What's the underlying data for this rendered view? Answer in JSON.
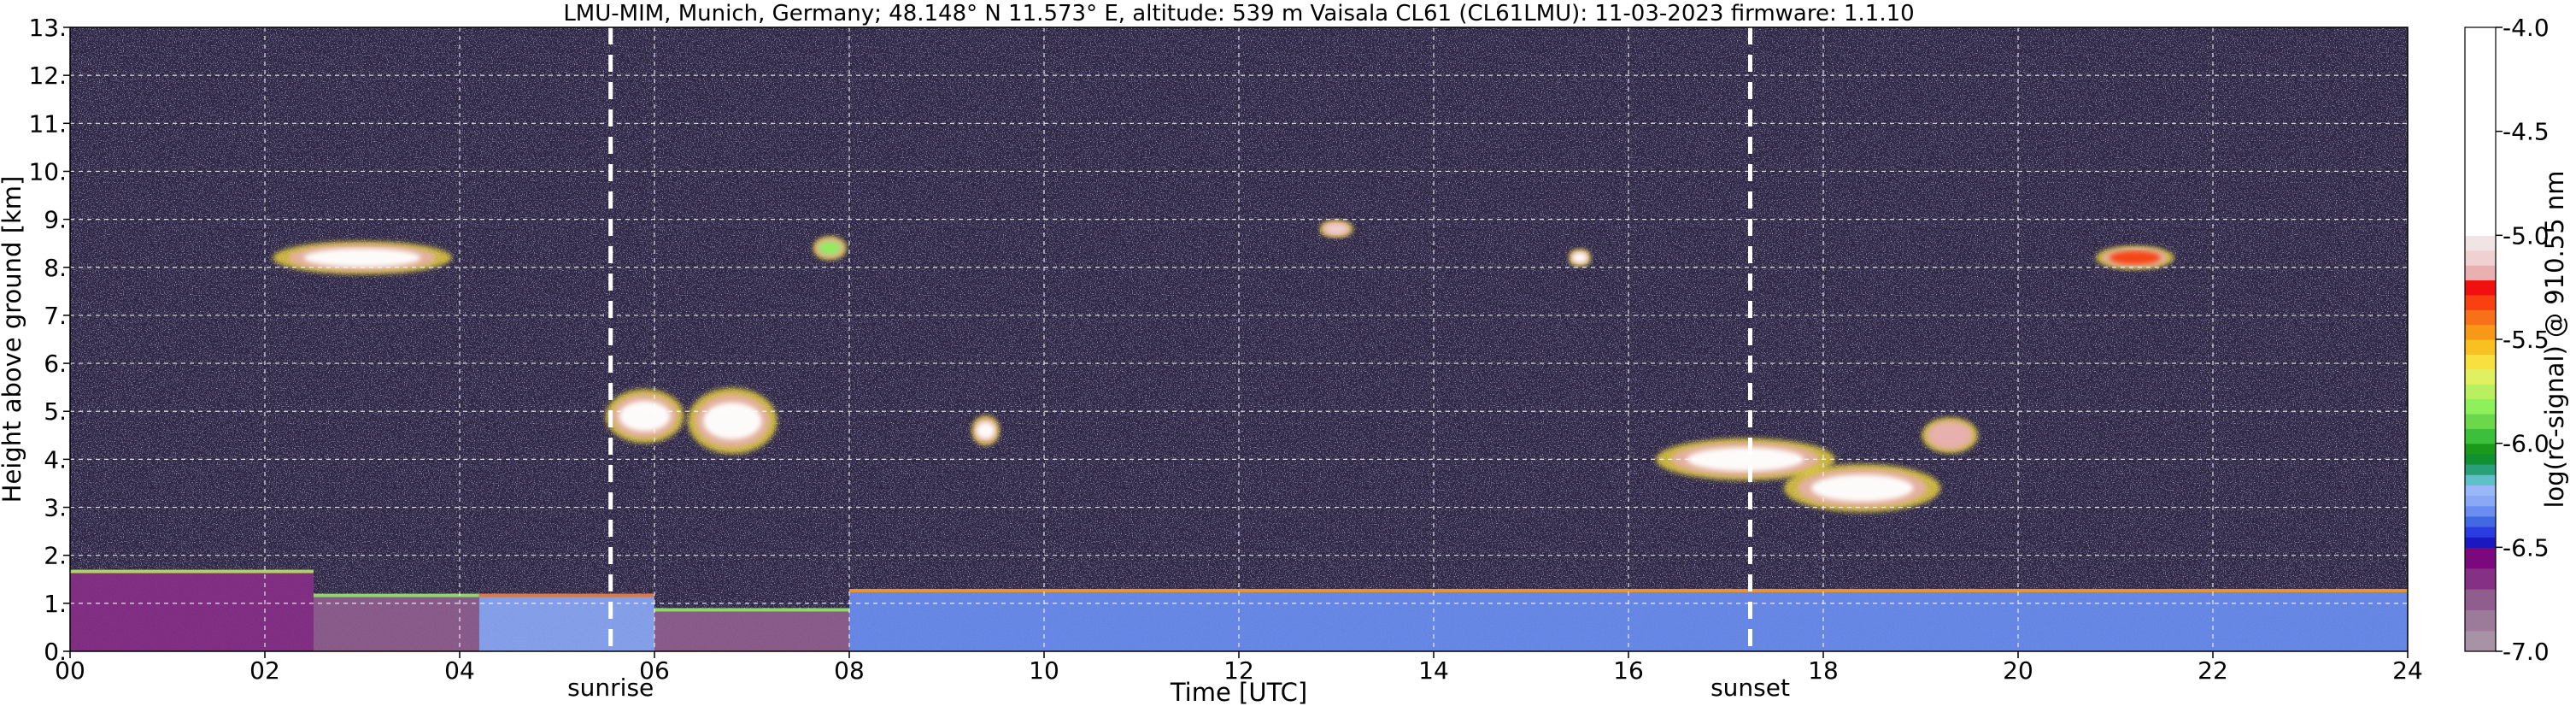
{
  "chart_data": {
    "type": "heatmap",
    "title": "LMU-MIM, Munich, Germany; 48.148° N 11.573° E, altitude: 539 m    Vaisala CL61 (CL61LMU): 11-03-2023    firmware: 1.1.10",
    "xlabel": "Time [UTC]",
    "ylabel": "Height above ground [km]",
    "xlim": [
      0,
      24
    ],
    "ylim": [
      0,
      13
    ],
    "x_ticks": [
      "00",
      "02",
      "04",
      "06",
      "08",
      "10",
      "12",
      "14",
      "16",
      "18",
      "20",
      "22",
      "24"
    ],
    "x_tick_values": [
      0,
      2,
      4,
      6,
      8,
      10,
      12,
      14,
      16,
      18,
      20,
      22,
      24
    ],
    "y_ticks": [
      "0.",
      "1.",
      "2.",
      "3.",
      "4.",
      "5.",
      "6.",
      "7.",
      "8.",
      "9.",
      "10.",
      "11.",
      "12.",
      "13."
    ],
    "y_tick_values": [
      0,
      1,
      2,
      3,
      4,
      5,
      6,
      7,
      8,
      9,
      10,
      11,
      12,
      13
    ],
    "grid": true,
    "annotations": [
      {
        "label": "sunrise",
        "x": 5.55
      },
      {
        "label": "sunset",
        "x": 17.25
      }
    ],
    "colorbar": {
      "label": "log(rc-signal) @ 910.55 nm",
      "range": [
        -7.0,
        -4.0
      ],
      "ticks": [
        "-7.0",
        "-6.5",
        "-6.0",
        "-5.5",
        "-5.0",
        "-4.5",
        "-4.0"
      ],
      "tick_values": [
        -7.0,
        -6.5,
        -6.0,
        -5.5,
        -5.0,
        -4.5,
        -4.0
      ],
      "bands": [
        {
          "from": -7.0,
          "to": -6.5,
          "colors": [
            "#a892a5",
            "#9c7a9a",
            "#8f5e8e",
            "#852f85",
            "#7c087e"
          ]
        },
        {
          "from": -6.5,
          "to": -6.0,
          "colors": [
            "#1a18c0",
            "#2a3de0",
            "#4169e1",
            "#6a8ef0",
            "#8aa8f4",
            "#9ab8f8",
            "#60c0c8",
            "#2aa078",
            "#109030",
            "#1a9a1a"
          ]
        },
        {
          "from": -6.0,
          "to": -5.0,
          "colors": [
            "#3cc03c",
            "#6ad84a",
            "#8ef05a",
            "#b8f060",
            "#e0f060",
            "#f8e040",
            "#f8c020",
            "#f89818",
            "#f87018",
            "#f84010",
            "#f01010",
            "#e8b0b0",
            "#f0d0d0",
            "#f0e4e4"
          ]
        },
        {
          "from": -5.0,
          "to": -4.0,
          "colors": [
            "#ffffff"
          ]
        }
      ]
    },
    "features": {
      "boundary_layer": [
        {
          "t0": 0.0,
          "t1": 2.5,
          "h_bottom": 0.0,
          "h_top": 1.7,
          "level": -6.65
        },
        {
          "t0": 2.5,
          "t1": 4.2,
          "h_bottom": 0.0,
          "h_top": 1.2,
          "level": -6.7
        },
        {
          "t0": 4.2,
          "t1": 6.0,
          "h_bottom": 0.0,
          "h_top": 1.2,
          "level": -6.3
        },
        {
          "t0": 6.0,
          "t1": 8.0,
          "h_bottom": 0.0,
          "h_top": 0.9,
          "level": -6.75
        },
        {
          "t0": 8.0,
          "t1": 24.0,
          "h_bottom": 0.0,
          "h_top": 1.3,
          "level": -6.35
        }
      ],
      "clouds": [
        {
          "t": 3.0,
          "h": 8.2,
          "dt": 1.6,
          "dh": 0.55,
          "level": -4.3
        },
        {
          "t": 5.9,
          "h": 4.9,
          "dt": 0.7,
          "dh": 0.9,
          "level": -4.3
        },
        {
          "t": 6.8,
          "h": 4.8,
          "dt": 0.8,
          "dh": 1.1,
          "level": -4.6
        },
        {
          "t": 9.4,
          "h": 4.6,
          "dt": 0.25,
          "dh": 0.5,
          "level": -4.8
        },
        {
          "t": 17.2,
          "h": 4.0,
          "dt": 1.6,
          "dh": 0.7,
          "level": -4.2
        },
        {
          "t": 18.4,
          "h": 3.4,
          "dt": 1.4,
          "dh": 0.8,
          "level": -4.4
        },
        {
          "t": 19.3,
          "h": 4.5,
          "dt": 0.5,
          "dh": 0.6,
          "level": -5.2
        },
        {
          "t": 21.2,
          "h": 8.2,
          "dt": 0.7,
          "dh": 0.4,
          "level": -5.3
        },
        {
          "t": 7.8,
          "h": 8.4,
          "dt": 0.3,
          "dh": 0.4,
          "level": -5.8
        },
        {
          "t": 13.0,
          "h": 8.8,
          "dt": 0.3,
          "dh": 0.3,
          "level": -5.1
        },
        {
          "t": 15.5,
          "h": 8.2,
          "dt": 0.2,
          "dh": 0.3,
          "level": -4.5
        }
      ]
    }
  }
}
